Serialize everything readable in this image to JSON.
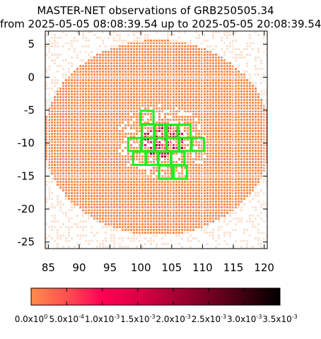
{
  "chart_data": {
    "type": "heatmap",
    "title_line1": "MASTER-NET observations of GRB250505.34",
    "title_line2": "from 2025-05-05 08:08:39.54 up to 2025-05-05 20:08:39.54",
    "xlim": [
      84.5,
      120.5
    ],
    "ylim": [
      -26,
      7
    ],
    "x_ticks": [
      "85",
      "90",
      "95",
      "100",
      "105",
      "110",
      "115",
      "120"
    ],
    "x_tick_values": [
      85,
      90,
      95,
      100,
      105,
      110,
      115,
      120
    ],
    "y_ticks": [
      "5",
      "0",
      "-5",
      "-10",
      "-15",
      "-20",
      "-25"
    ],
    "y_tick_values": [
      5,
      0,
      -5,
      -10,
      -15,
      -20,
      -25
    ],
    "probability_region": {
      "center": [
        102.5,
        -9.0
      ],
      "semi_axes_deg": [
        18.5,
        14.8
      ],
      "peak_center": [
        103.5,
        -9.5
      ],
      "peak_value": 0.002
    },
    "observed_fields": [
      {
        "x": 101.0,
        "y": -6.1
      },
      {
        "x": 101.2,
        "y": -8.2
      },
      {
        "x": 103.2,
        "y": -8.2
      },
      {
        "x": 105.0,
        "y": -8.2
      },
      {
        "x": 107.0,
        "y": -8.2
      },
      {
        "x": 99.0,
        "y": -10.2
      },
      {
        "x": 101.2,
        "y": -10.2
      },
      {
        "x": 103.2,
        "y": -10.2
      },
      {
        "x": 105.2,
        "y": -10.2
      },
      {
        "x": 107.2,
        "y": -10.2
      },
      {
        "x": 109.2,
        "y": -10.2
      },
      {
        "x": 99.8,
        "y": -12.3
      },
      {
        "x": 101.8,
        "y": -12.3
      },
      {
        "x": 103.8,
        "y": -12.3
      },
      {
        "x": 106.0,
        "y": -12.3
      },
      {
        "x": 104.0,
        "y": -14.4
      },
      {
        "x": 106.4,
        "y": -14.4
      }
    ],
    "field_size_deg": [
      2.1,
      2.0
    ],
    "field_color": "#22ee22",
    "colorbar": {
      "range": [
        0,
        0.0035
      ],
      "tick_mantissas": [
        "0.0x10",
        "5.0x10",
        "1.0x10",
        "1.5x10",
        "2.0x10",
        "2.5x10",
        "3.0x10",
        "3.5x10"
      ],
      "tick_exponents": [
        "0",
        "-4",
        "-3",
        "-3",
        "-3",
        "-3",
        "-3",
        "-3"
      ],
      "tick_values": [
        0,
        0.0005,
        0.001,
        0.0015,
        0.002,
        0.0025,
        0.003,
        0.0035
      ],
      "colors": [
        "#ff8c4c",
        "#ff5050",
        "#ff0055",
        "#dd0044",
        "#aa0033",
        "#770022",
        "#3d0011",
        "#000000"
      ]
    }
  }
}
